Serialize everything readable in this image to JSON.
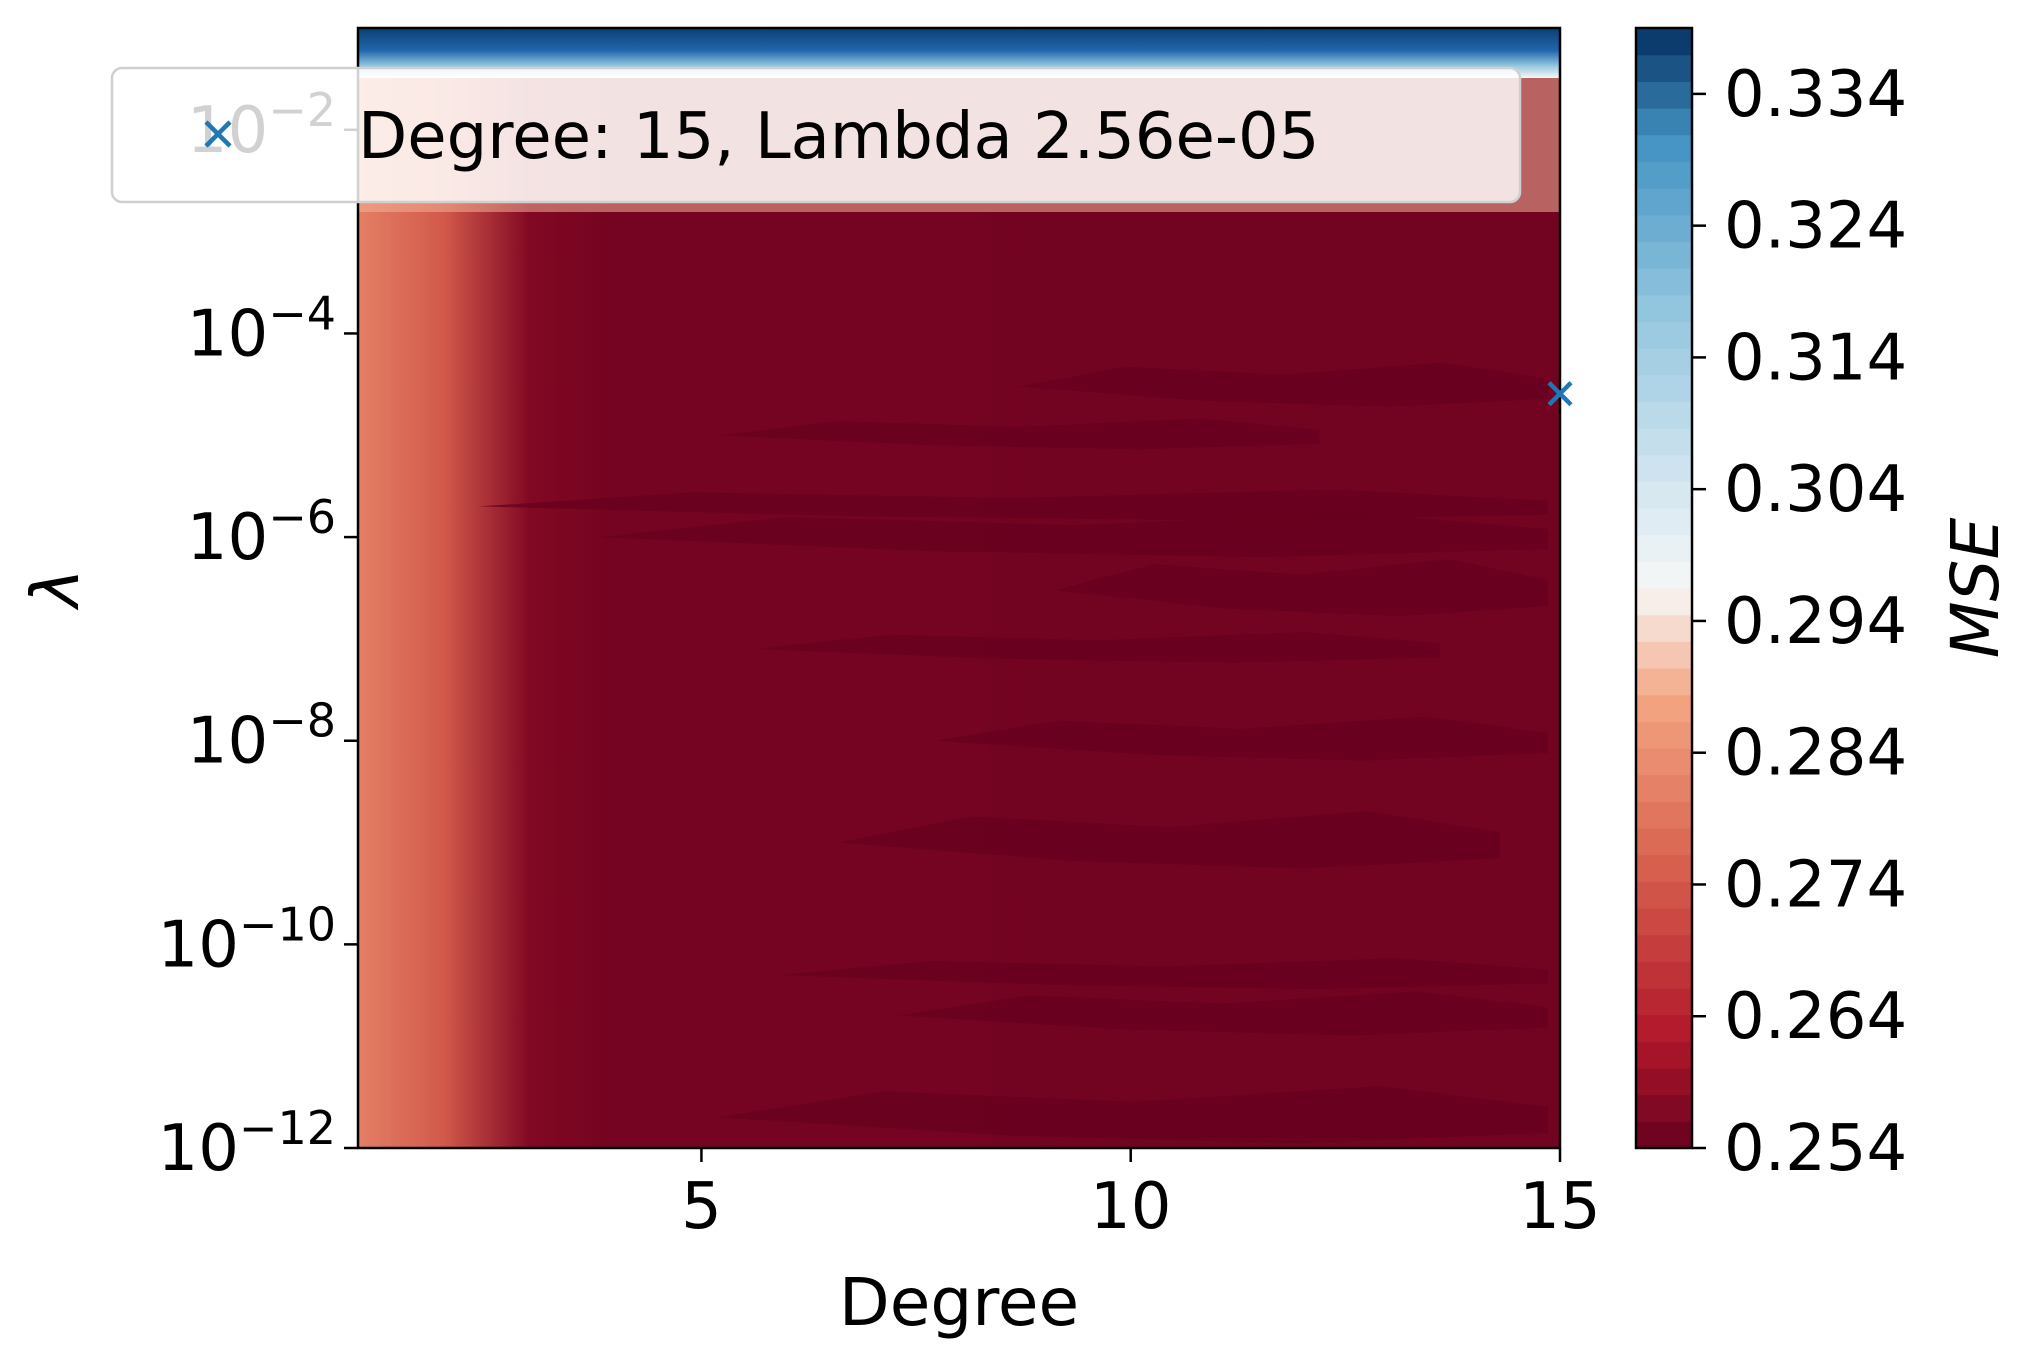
{
  "chart_data": {
    "type": "heatmap",
    "subtype": "filled-contour",
    "title": "",
    "xlabel": "Degree",
    "ylabel": "λ",
    "x_ticks": [
      "5",
      "10",
      "15"
    ],
    "x_tick_values": [
      5,
      10,
      15
    ],
    "xlim": [
      1,
      15
    ],
    "y_scale": "log",
    "y_ticks": [
      {
        "value": 0.01,
        "base": "10",
        "exp": "−2"
      },
      {
        "value": 0.0001,
        "base": "10",
        "exp": "−4"
      },
      {
        "value": 1e-06,
        "base": "10",
        "exp": "−6"
      },
      {
        "value": 1e-08,
        "base": "10",
        "exp": "−8"
      },
      {
        "value": 1e-10,
        "base": "10",
        "exp": "−10"
      },
      {
        "value": 1e-12,
        "base": "10",
        "exp": "−12"
      }
    ],
    "ylim": [
      1e-12,
      0.1
    ],
    "colorbar": {
      "label": "MSE",
      "colormap": "RdBu",
      "range": [
        0.254,
        0.339
      ],
      "ticks": [
        "0.334",
        "0.324",
        "0.314",
        "0.304",
        "0.294",
        "0.284",
        "0.274",
        "0.264",
        "0.254"
      ],
      "tick_values": [
        0.334,
        0.324,
        0.314,
        0.304,
        0.294,
        0.284,
        0.274,
        0.264,
        0.254
      ]
    },
    "mse_by_degree": {
      "degree": [
        1,
        2,
        3,
        4,
        5,
        6,
        7,
        8,
        9,
        10,
        11,
        12,
        13,
        14,
        15
      ],
      "mse": [
        0.281,
        0.274,
        0.257,
        0.2555,
        0.2555,
        0.2555,
        0.2555,
        0.2555,
        0.2552,
        0.2552,
        0.2552,
        0.2552,
        0.2552,
        0.2552,
        0.2552
      ],
      "note_lambda_dependence": "blue band (MSE ~0.339) only at the top edge of lambda; light band just below"
    },
    "optimum": {
      "degree": 15,
      "lambda": 2.56e-05
    },
    "marker_color": "#1f77b4",
    "legend": {
      "label": "Degree: 15, Lambda 2.56e-05",
      "position": "upper left"
    }
  }
}
